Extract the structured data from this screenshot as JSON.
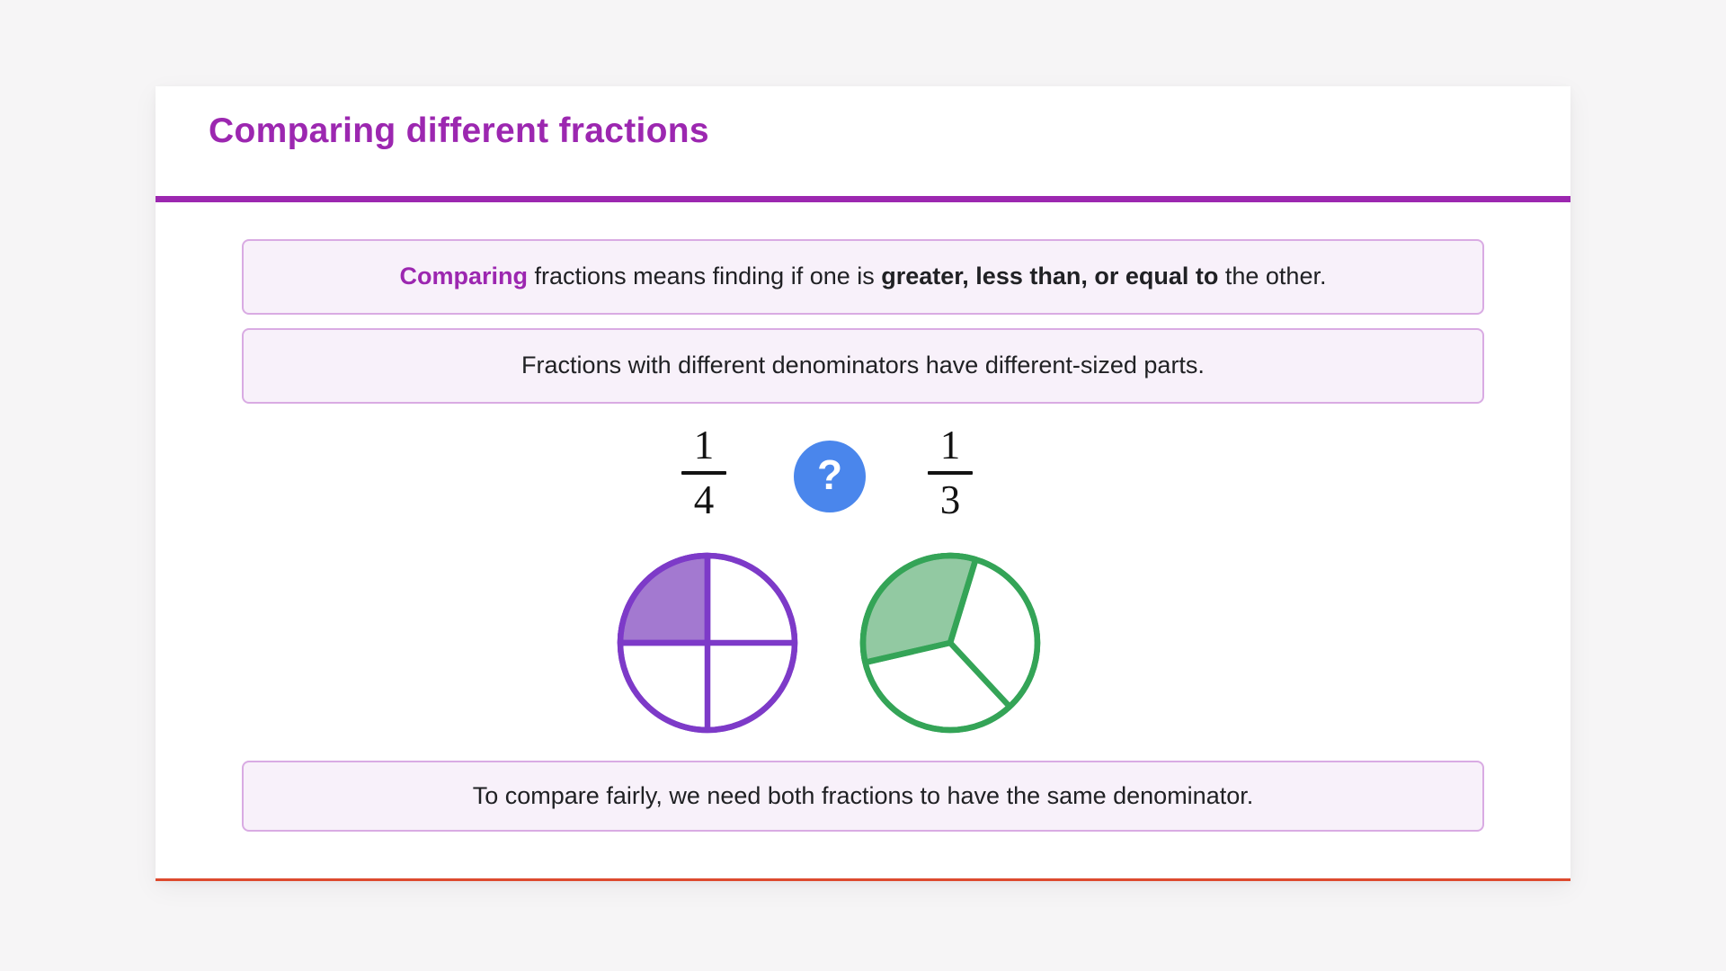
{
  "page": {
    "background": "#f6f5f6"
  },
  "card": {
    "title": "Comparing different fractions",
    "colors": {
      "title": "#9c27b0",
      "divider": "#9c27b0",
      "bottom_rule": "#dd4a2e",
      "callout_bg": "#f8f1fa",
      "callout_border": "#d9abe3"
    }
  },
  "callouts": {
    "definition": {
      "lead": "Comparing",
      "middle": " fractions means finding if one is ",
      "emphasis": "greater, less than, or equal to",
      "tail": " the other."
    },
    "denominators": "Fractions with different denominators have different-sized parts.",
    "conclusion": "To compare fairly, we need both fractions to have the same denominator."
  },
  "comparison": {
    "left": {
      "numerator": "1",
      "denominator": "4"
    },
    "operator": "?",
    "operator_color": "#4a86ec",
    "right": {
      "numerator": "1",
      "denominator": "3"
    }
  },
  "pies": [
    {
      "name": "quarters",
      "shaded": 1,
      "total": 4,
      "rotation": 0,
      "shaded_start": 90,
      "shaded_end": 180,
      "stroke": "#7d3ac8",
      "fill": "#a379d0"
    },
    {
      "name": "thirds",
      "shaded": 1,
      "total": 3,
      "rotation": 73,
      "shaded_start": 73,
      "shaded_end": 193,
      "stroke": "#34a457",
      "fill": "#92c9a2"
    }
  ]
}
